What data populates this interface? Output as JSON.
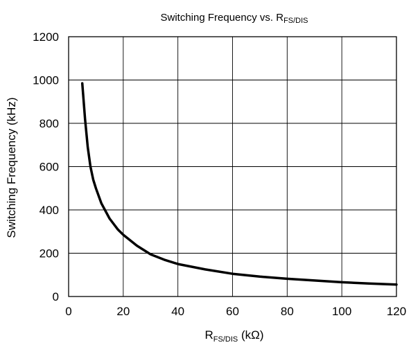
{
  "chart_data": {
    "type": "line",
    "title": {
      "main": "Switching Frequency vs. R",
      "sub": "FS/DIS"
    },
    "xlabel": {
      "main": "R",
      "sub": "FS/DIS",
      "unit": " (kΩ)"
    },
    "ylabel": "Switching Frequency (kHz)",
    "xlim": [
      0,
      120
    ],
    "ylim": [
      0,
      1200
    ],
    "x_ticks": [
      0,
      20,
      40,
      60,
      80,
      100,
      120
    ],
    "y_ticks": [
      0,
      200,
      400,
      600,
      800,
      1000,
      1200
    ],
    "grid": true,
    "legend": "none",
    "series": [
      {
        "color": "#000000",
        "x": [
          5,
          6,
          7,
          8,
          9,
          10,
          12,
          15,
          18,
          20,
          25,
          30,
          35,
          40,
          50,
          60,
          70,
          80,
          90,
          100,
          110,
          120
        ],
        "y": [
          985,
          820,
          690,
          600,
          540,
          500,
          430,
          360,
          310,
          285,
          235,
          195,
          170,
          150,
          125,
          105,
          92,
          82,
          74,
          66,
          60,
          55
        ]
      }
    ]
  }
}
